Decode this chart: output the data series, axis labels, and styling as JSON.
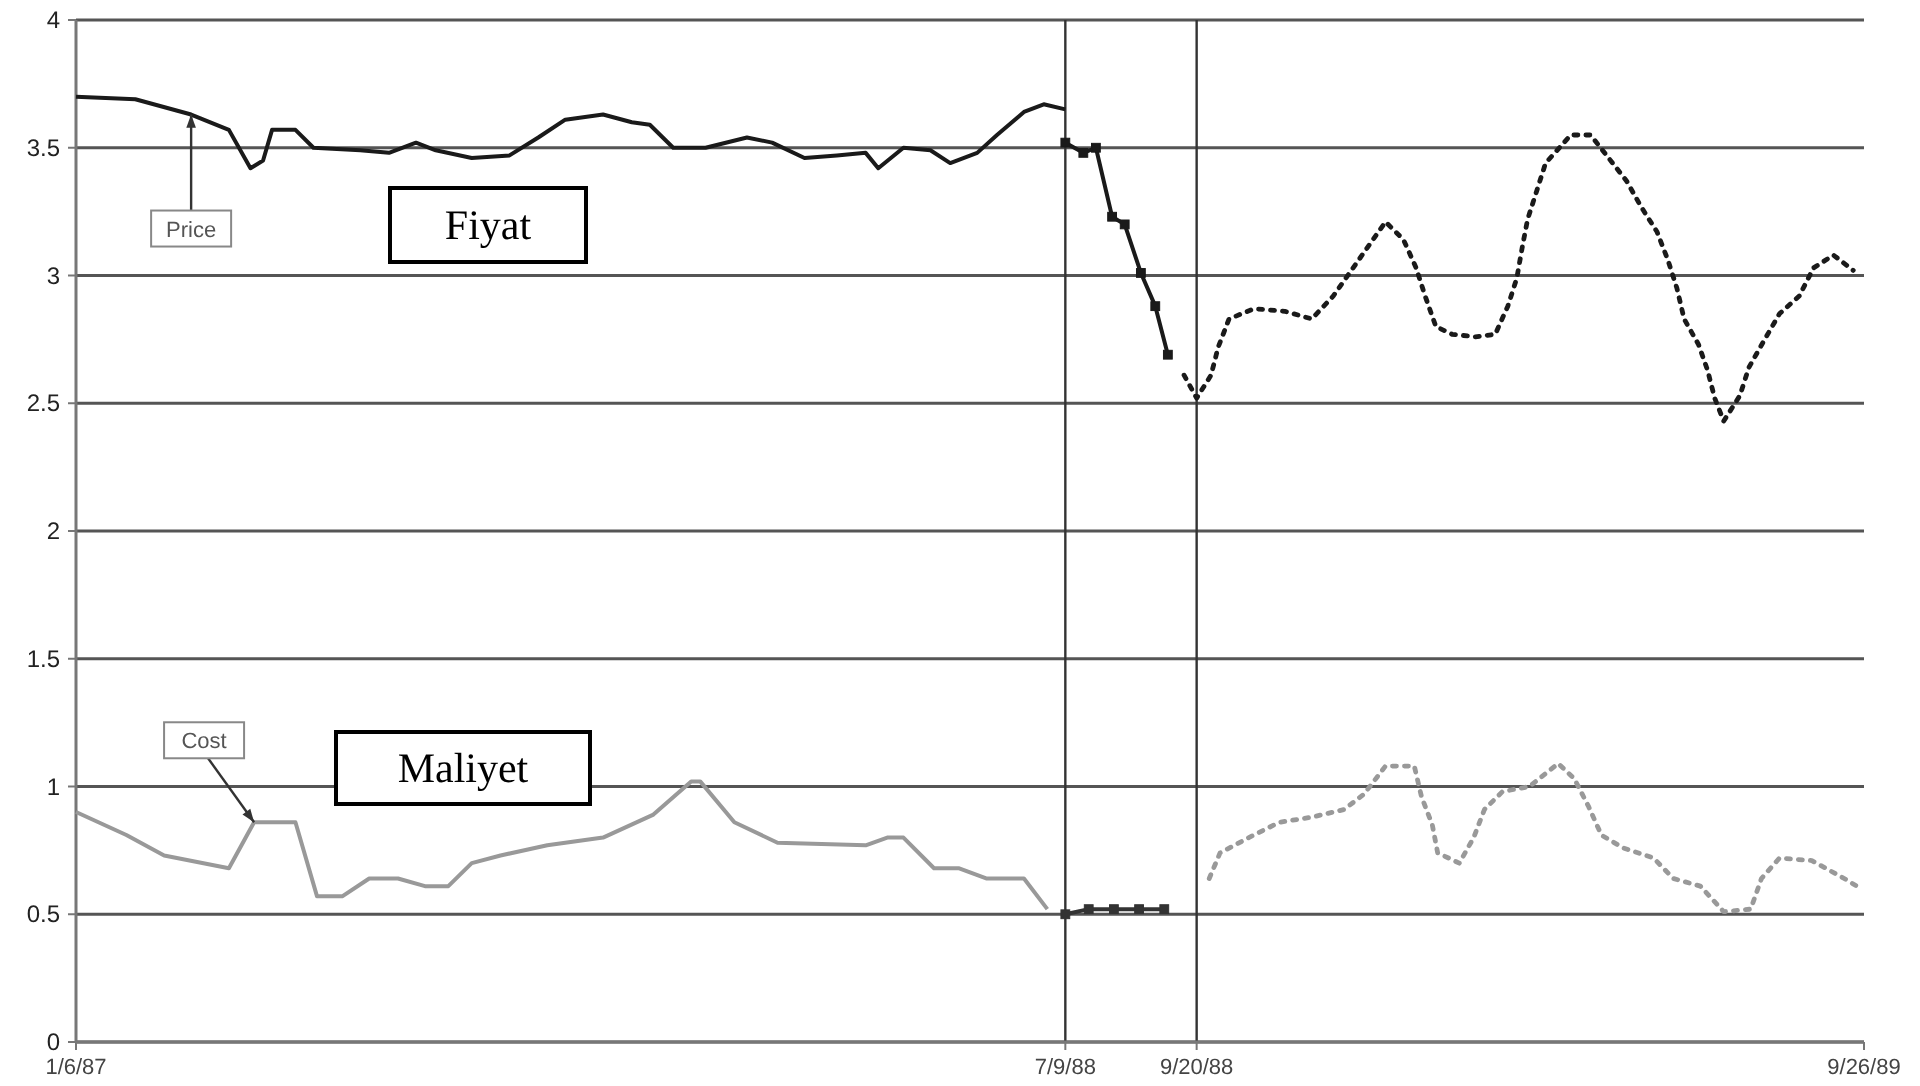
{
  "chart_data": {
    "type": "line",
    "xlim": [
      "1987-01-06",
      "1989-09-26"
    ],
    "xticks": [
      {
        "value": "1987-01-06",
        "label": "1/6/87"
      },
      {
        "value": "1988-07-09",
        "label": "7/9/88"
      },
      {
        "value": "1988-09-20",
        "label": "9/20/88"
      },
      {
        "value": "1989-09-26",
        "label": "9/26/89"
      }
    ],
    "ylim": [
      0,
      4
    ],
    "yticks": [
      0,
      0.5,
      1,
      1.5,
      2,
      2.5,
      3,
      3.5,
      4
    ],
    "grid": "y",
    "marker": "none",
    "annotations": [
      "Fiyat",
      "Maliyet"
    ],
    "ref_lines": [
      {
        "axis": "x",
        "value": "1988-07-09",
        "color": "#333333"
      },
      {
        "axis": "x",
        "value": "1988-09-20",
        "color": "#333333"
      }
    ],
    "series": [
      {
        "name": "Price",
        "color": "#1a1a1a",
        "line_style": "solid",
        "x": [
          "1987-01-06",
          "1987-02-08",
          "1987-03-11",
          "1987-04-01",
          "1987-04-13",
          "1987-04-20",
          "1987-04-25",
          "1987-05-08",
          "1987-05-18",
          "1987-06-13",
          "1987-06-29",
          "1987-07-14",
          "1987-07-25",
          "1987-08-14",
          "1987-09-04",
          "1987-09-20",
          "1987-10-05",
          "1987-10-26",
          "1987-11-11",
          "1987-11-21",
          "1987-12-04",
          "1987-12-22",
          "1988-01-14",
          "1988-01-28",
          "1988-02-15",
          "1988-03-04",
          "1988-03-20",
          "1988-03-27",
          "1988-04-10",
          "1988-04-25",
          "1988-05-06",
          "1988-05-21",
          "1988-06-01",
          "1988-06-16",
          "1988-06-27",
          "1988-07-09"
        ],
        "values": [
          3.7,
          3.69,
          3.63,
          3.57,
          3.42,
          3.45,
          3.57,
          3.57,
          3.5,
          3.49,
          3.48,
          3.52,
          3.49,
          3.46,
          3.47,
          3.54,
          3.61,
          3.63,
          3.6,
          3.59,
          3.5,
          3.5,
          3.54,
          3.52,
          3.46,
          3.47,
          3.48,
          3.42,
          3.5,
          3.49,
          3.44,
          3.48,
          3.55,
          3.64,
          3.67,
          3.65
        ]
      },
      {
        "color": "#1a1a1a",
        "line_style": "solid",
        "marker": "square",
        "x": [
          "1988-07-09",
          "1988-07-19",
          "1988-07-26",
          "1988-08-04",
          "1988-08-11",
          "1988-08-20",
          "1988-08-28",
          "1988-09-04"
        ],
        "values": [
          3.52,
          3.48,
          3.5,
          3.23,
          3.2,
          3.01,
          2.88,
          2.69
        ]
      },
      {
        "color": "#1a1a1a",
        "line_style": "dotted",
        "x": [
          "1988-09-13",
          "1988-09-20",
          "1988-09-28",
          "1988-10-02",
          "1988-10-08",
          "1988-10-22",
          "1988-11-08",
          "1988-11-23",
          "1988-12-05",
          "1988-12-15",
          "1988-12-24",
          "1989-01-03",
          "1989-01-13",
          "1989-01-20",
          "1989-01-25",
          "1989-01-31",
          "1989-02-09",
          "1989-02-22",
          "1989-03-05",
          "1989-03-12",
          "1989-03-17",
          "1989-03-20",
          "1989-03-23",
          "1989-03-28",
          "1989-04-02",
          "1989-04-16",
          "1989-04-27",
          "1989-05-17",
          "1989-05-25",
          "1989-06-03",
          "1989-06-09",
          "1989-06-14",
          "1989-06-18",
          "1989-06-26",
          "1989-07-01",
          "1989-07-05",
          "1989-07-10",
          "1989-07-19",
          "1989-07-24",
          "1989-08-01",
          "1989-08-10",
          "1989-08-21",
          "1989-08-29",
          "1989-09-09",
          "1989-09-20"
        ],
        "values": [
          2.61,
          2.52,
          2.61,
          2.72,
          2.83,
          2.87,
          2.86,
          2.83,
          2.92,
          3.02,
          3.11,
          3.21,
          3.14,
          3.03,
          2.92,
          2.8,
          2.77,
          2.76,
          2.77,
          2.88,
          2.99,
          3.11,
          3.22,
          3.33,
          3.44,
          3.55,
          3.55,
          3.37,
          3.27,
          3.17,
          3.06,
          2.95,
          2.83,
          2.73,
          2.63,
          2.52,
          2.43,
          2.53,
          2.64,
          2.74,
          2.85,
          2.92,
          3.03,
          3.08,
          3.02
        ]
      },
      {
        "name": "Cost",
        "color": "#999999",
        "line_style": "solid",
        "x": [
          "1987-01-06",
          "1987-02-03",
          "1987-02-24",
          "1987-04-01",
          "1987-04-15",
          "1987-05-08",
          "1987-05-20",
          "1987-06-03",
          "1987-06-18",
          "1987-07-04",
          "1987-07-19",
          "1987-08-01",
          "1987-08-14",
          "1987-08-30",
          "1987-09-25",
          "1987-10-26",
          "1987-11-23",
          "1987-12-14",
          "1987-12-19",
          "1988-01-07",
          "1988-01-31",
          "1988-03-20",
          "1988-04-01",
          "1988-04-10",
          "1988-04-27",
          "1988-05-11",
          "1988-05-26",
          "1988-06-16",
          "1988-06-29"
        ],
        "values": [
          0.9,
          0.81,
          0.73,
          0.68,
          0.86,
          0.86,
          0.57,
          0.57,
          0.64,
          0.64,
          0.61,
          0.61,
          0.7,
          0.73,
          0.77,
          0.8,
          0.89,
          1.02,
          1.02,
          0.86,
          0.78,
          0.77,
          0.8,
          0.8,
          0.68,
          0.68,
          0.64,
          0.64,
          0.52
        ]
      },
      {
        "color": "#333333",
        "line_style": "solid",
        "marker": "square",
        "x": [
          "1988-07-09",
          "1988-07-22",
          "1988-08-05",
          "1988-08-19",
          "1988-09-02"
        ],
        "values": [
          0.5,
          0.52,
          0.52,
          0.52,
          0.52
        ]
      },
      {
        "color": "#999999",
        "line_style": "dotted",
        "x": [
          "1988-09-27",
          "1988-10-03",
          "1988-10-19",
          "1988-11-05",
          "1988-11-23",
          "1988-12-11",
          "1988-12-22",
          "1989-01-03",
          "1989-01-19",
          "1989-01-23",
          "1989-01-29",
          "1989-02-01",
          "1989-02-13",
          "1989-02-21",
          "1989-02-27",
          "1989-03-09",
          "1989-03-24",
          "1989-04-09",
          "1989-04-18",
          "1989-04-26",
          "1989-05-03",
          "1989-05-15",
          "1989-06-01",
          "1989-06-12",
          "1989-06-27",
          "1989-07-10",
          "1989-07-25",
          "1989-07-31",
          "1989-08-10",
          "1989-08-28",
          "1989-09-15",
          "1989-09-22"
        ],
        "values": [
          0.64,
          0.74,
          0.8,
          0.86,
          0.88,
          0.91,
          0.97,
          1.08,
          1.08,
          0.96,
          0.85,
          0.74,
          0.7,
          0.8,
          0.91,
          0.98,
          1.0,
          1.09,
          1.03,
          0.92,
          0.81,
          0.76,
          0.72,
          0.64,
          0.61,
          0.51,
          0.52,
          0.64,
          0.72,
          0.71,
          0.64,
          0.61
        ]
      }
    ]
  }
}
